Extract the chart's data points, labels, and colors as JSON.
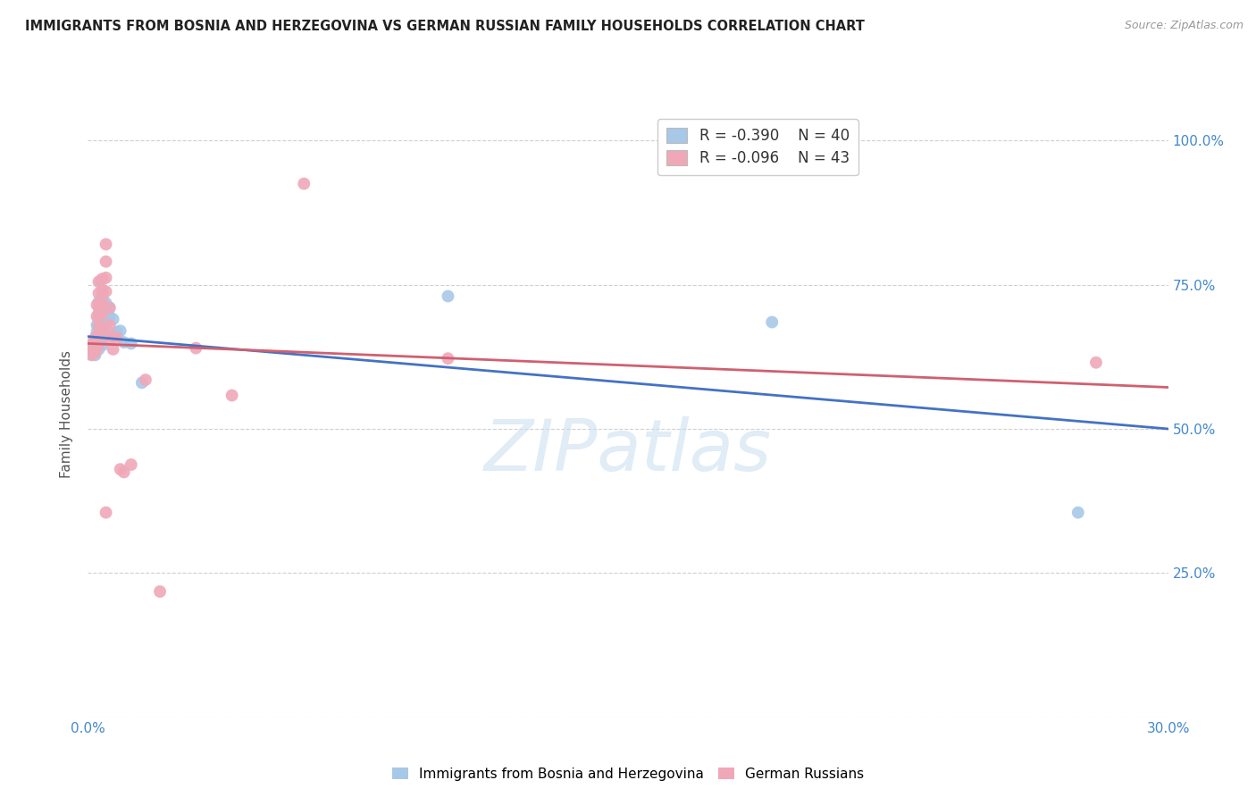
{
  "title": "IMMIGRANTS FROM BOSNIA AND HERZEGOVINA VS GERMAN RUSSIAN FAMILY HOUSEHOLDS CORRELATION CHART",
  "source": "Source: ZipAtlas.com",
  "ylabel": "Family Households",
  "xlim": [
    0.0,
    0.3
  ],
  "ylim": [
    0.0,
    1.05
  ],
  "background_color": "#ffffff",
  "grid_color": "#d0d0d0",
  "watermark": "ZIPatlas",
  "legend_R1": "R = -0.390",
  "legend_N1": "N = 40",
  "legend_R2": "R = -0.096",
  "legend_N2": "N = 43",
  "blue_color": "#a8c8e8",
  "pink_color": "#f0a8b8",
  "blue_line_color": "#4472c4",
  "pink_line_color": "#d06070",
  "title_color": "#222222",
  "axis_color": "#4488cc",
  "blue_scatter": [
    [
      0.0005,
      0.638
    ],
    [
      0.001,
      0.645
    ],
    [
      0.001,
      0.63
    ],
    [
      0.0015,
      0.648
    ],
    [
      0.0015,
      0.635
    ],
    [
      0.002,
      0.655
    ],
    [
      0.002,
      0.64
    ],
    [
      0.002,
      0.628
    ],
    [
      0.0025,
      0.68
    ],
    [
      0.0025,
      0.668
    ],
    [
      0.0025,
      0.655
    ],
    [
      0.003,
      0.72
    ],
    [
      0.003,
      0.7
    ],
    [
      0.003,
      0.68
    ],
    [
      0.003,
      0.665
    ],
    [
      0.003,
      0.65
    ],
    [
      0.003,
      0.638
    ],
    [
      0.0035,
      0.755
    ],
    [
      0.004,
      0.73
    ],
    [
      0.004,
      0.71
    ],
    [
      0.004,
      0.69
    ],
    [
      0.004,
      0.672
    ],
    [
      0.004,
      0.658
    ],
    [
      0.004,
      0.645
    ],
    [
      0.005,
      0.718
    ],
    [
      0.005,
      0.7
    ],
    [
      0.005,
      0.68
    ],
    [
      0.005,
      0.662
    ],
    [
      0.006,
      0.71
    ],
    [
      0.006,
      0.695
    ],
    [
      0.007,
      0.69
    ],
    [
      0.007,
      0.662
    ],
    [
      0.008,
      0.668
    ],
    [
      0.009,
      0.67
    ],
    [
      0.01,
      0.65
    ],
    [
      0.012,
      0.648
    ],
    [
      0.015,
      0.58
    ],
    [
      0.1,
      0.73
    ],
    [
      0.19,
      0.685
    ],
    [
      0.275,
      0.355
    ]
  ],
  "pink_scatter": [
    [
      0.0005,
      0.645
    ],
    [
      0.001,
      0.638
    ],
    [
      0.001,
      0.628
    ],
    [
      0.0015,
      0.65
    ],
    [
      0.0015,
      0.638
    ],
    [
      0.002,
      0.658
    ],
    [
      0.002,
      0.645
    ],
    [
      0.002,
      0.632
    ],
    [
      0.0025,
      0.715
    ],
    [
      0.0025,
      0.695
    ],
    [
      0.003,
      0.755
    ],
    [
      0.003,
      0.735
    ],
    [
      0.003,
      0.712
    ],
    [
      0.003,
      0.695
    ],
    [
      0.003,
      0.678
    ],
    [
      0.003,
      0.662
    ],
    [
      0.003,
      0.645
    ],
    [
      0.004,
      0.76
    ],
    [
      0.004,
      0.74
    ],
    [
      0.004,
      0.72
    ],
    [
      0.004,
      0.7
    ],
    [
      0.004,
      0.672
    ],
    [
      0.005,
      0.82
    ],
    [
      0.005,
      0.79
    ],
    [
      0.005,
      0.762
    ],
    [
      0.005,
      0.738
    ],
    [
      0.005,
      0.355
    ],
    [
      0.006,
      0.71
    ],
    [
      0.006,
      0.68
    ],
    [
      0.006,
      0.658
    ],
    [
      0.007,
      0.66
    ],
    [
      0.007,
      0.638
    ],
    [
      0.008,
      0.658
    ],
    [
      0.009,
      0.43
    ],
    [
      0.01,
      0.425
    ],
    [
      0.012,
      0.438
    ],
    [
      0.016,
      0.585
    ],
    [
      0.02,
      0.218
    ],
    [
      0.03,
      0.64
    ],
    [
      0.04,
      0.558
    ],
    [
      0.06,
      0.925
    ],
    [
      0.1,
      0.622
    ],
    [
      0.28,
      0.615
    ]
  ],
  "blue_trendline": [
    [
      0.0,
      0.66
    ],
    [
      0.3,
      0.5
    ]
  ],
  "pink_trendline": [
    [
      0.0,
      0.648
    ],
    [
      0.3,
      0.572
    ]
  ]
}
